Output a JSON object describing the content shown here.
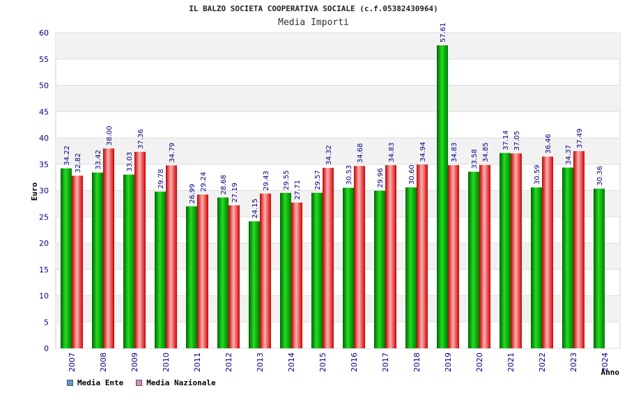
{
  "colors": {
    "ente": "#22b022",
    "nazionale": "#e03838",
    "legend_ente": "#5b9bd5",
    "legend_nazionale": "#d98ab8",
    "band": "#f2f2f2",
    "axis_text": "#00008b",
    "value_text": "#000080"
  },
  "chart_data": {
    "type": "bar",
    "title": "IL BALZO SOCIETA COOPERATIVA SOCIALE (c.f.05382430964)",
    "subtitle": "Media Importi",
    "xlabel": "Anno",
    "ylabel": "Euro",
    "ylim": [
      0,
      60
    ],
    "yticks": [
      0,
      5,
      10,
      15,
      20,
      25,
      30,
      35,
      40,
      45,
      50,
      55,
      60
    ],
    "categories": [
      "2007",
      "2008",
      "2009",
      "2010",
      "2011",
      "2012",
      "2013",
      "2014",
      "2015",
      "2016",
      "2017",
      "2018",
      "2019",
      "2020",
      "2021",
      "2022",
      "2023",
      "2024"
    ],
    "series": [
      {
        "name": "Media Ente",
        "values": [
          34.22,
          33.42,
          33.03,
          29.78,
          26.99,
          28.68,
          24.15,
          29.55,
          29.57,
          30.53,
          29.96,
          30.6,
          57.61,
          33.58,
          37.14,
          30.59,
          34.37,
          30.36
        ],
        "labels": [
          "34.22",
          "33.42",
          "33.03",
          "29.78",
          "26.99",
          "28.68",
          "24.15",
          "29.55",
          "29.57",
          "30.53",
          "29.96",
          "30.60",
          "57.61",
          "33.58",
          "37.14",
          "30.59",
          "34.37",
          "30.36"
        ]
      },
      {
        "name": "Media Nazionale",
        "values": [
          32.82,
          38.0,
          37.36,
          34.79,
          29.24,
          27.19,
          29.43,
          27.71,
          34.32,
          34.68,
          34.83,
          34.94,
          34.83,
          34.85,
          37.05,
          36.46,
          37.49,
          null
        ],
        "labels": [
          "32.82",
          "38.00",
          "37.36",
          "34.79",
          "29.24",
          "27.19",
          "29.43",
          "27.71",
          "34.32",
          "34.68",
          "34.83",
          "34.94",
          "34.83",
          "34.85",
          "37.05",
          "36.46",
          "37.49",
          null
        ]
      }
    ],
    "legend": "bottom-left"
  }
}
